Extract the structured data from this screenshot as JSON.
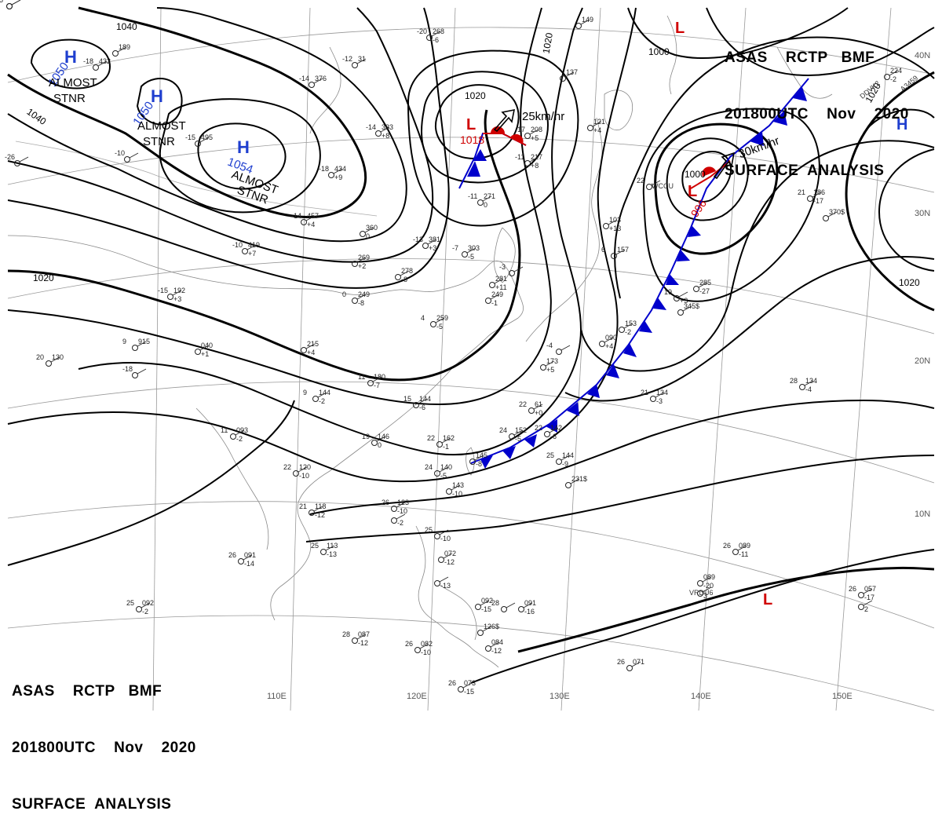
{
  "title": {
    "line1": "ASAS    RCTP   BMF",
    "line2": "201800UTC    Nov    2020",
    "line3": "SURFACE  ANALYSIS"
  },
  "lat_labels": [
    "40N",
    "30N",
    "20N",
    "10N"
  ],
  "lon_labels": [
    "110E",
    "120E",
    "130E",
    "140E",
    "150E"
  ],
  "isobar_labels": [
    "1040",
    "1040",
    "1020",
    "1020",
    "1000",
    "1020",
    "1020",
    "1000",
    "1020"
  ],
  "pressure_systems": [
    {
      "type": "H",
      "value": "1050",
      "note1": "ALMOST",
      "note2": "STNR"
    },
    {
      "type": "H",
      "value": "1050",
      "note1": "ALMOST",
      "note2": "STNR"
    },
    {
      "type": "H",
      "value": "1054",
      "note1": "ALMOST",
      "note2": "STNR"
    },
    {
      "type": "L",
      "value": "1018",
      "motion": "25km/hr"
    },
    {
      "type": "L",
      "value": "996",
      "motion": "30km/hr"
    },
    {
      "type": "L",
      "value": ""
    },
    {
      "type": "L",
      "value": ""
    },
    {
      "type": "H",
      "value": ""
    }
  ],
  "stations": [
    {
      "t": "-20",
      "p": "268",
      "w": "-6"
    },
    {
      "t": "-18",
      "p": "432",
      "w": ""
    },
    {
      "t": "-12",
      "p": "31",
      "w": ""
    },
    {
      "t": "-14",
      "p": "376",
      "w": ""
    },
    {
      "t": "-15",
      "p": "495",
      "w": ""
    },
    {
      "t": "-14",
      "p": "333",
      "w": "+8"
    },
    {
      "t": "-18",
      "p": "434",
      "w": "+9"
    },
    {
      "t": "-14",
      "p": "457",
      "w": "+4"
    },
    {
      "t": "-17",
      "p": "208",
      "w": "+5"
    },
    {
      "t": "-11",
      "p": "217",
      "w": "+8"
    },
    {
      "t": "-11",
      "p": "271",
      "w": "0"
    },
    {
      "t": "-13",
      "p": "381",
      "w": "+3"
    },
    {
      "t": "-7",
      "p": "303",
      "w": "-5"
    },
    {
      "t": "",
      "p": "360",
      "w": "0"
    },
    {
      "t": "-10",
      "p": "419",
      "w": "+7"
    },
    {
      "t": "",
      "p": "269",
      "w": "+2"
    },
    {
      "t": "",
      "p": "278",
      "w": "-8"
    },
    {
      "t": "",
      "p": "281",
      "w": "+11"
    },
    {
      "t": "",
      "p": "249",
      "w": "-1"
    },
    {
      "t": "0",
      "p": "249",
      "w": "-8"
    },
    {
      "t": "-15",
      "p": "192",
      "w": "+3"
    },
    {
      "t": "4",
      "p": "259",
      "w": "-5"
    },
    {
      "t": "9",
      "p": "915",
      "w": ""
    },
    {
      "t": "",
      "p": "040",
      "w": "+1"
    },
    {
      "t": "",
      "p": "215",
      "w": "+4"
    },
    {
      "t": "20",
      "p": "130",
      "w": ""
    },
    {
      "t": "9",
      "p": "144",
      "w": "-2"
    },
    {
      "t": "11",
      "p": "180",
      "w": "-7"
    },
    {
      "t": "15",
      "p": "144",
      "w": "-6"
    },
    {
      "t": "",
      "p": "173",
      "w": "+5"
    },
    {
      "t": "22",
      "p": "61",
      "w": "+0"
    },
    {
      "t": "11",
      "p": "093",
      "w": "-2"
    },
    {
      "t": "19",
      "p": "146",
      "w": "0"
    },
    {
      "t": "22",
      "p": "162",
      "w": "-1"
    },
    {
      "t": "24",
      "p": "152",
      "w": "-5"
    },
    {
      "t": "22",
      "p": "142",
      "w": "-6"
    },
    {
      "t": "",
      "p": "145",
      "w": "-8"
    },
    {
      "t": "25",
      "p": "144",
      "w": "-9"
    },
    {
      "t": "",
      "p": "231$",
      "w": ""
    },
    {
      "t": "22",
      "p": "120",
      "w": "-10"
    },
    {
      "t": "24",
      "p": "140",
      "w": "-5"
    },
    {
      "t": "",
      "p": "143",
      "w": "-10"
    },
    {
      "t": "21",
      "p": "118",
      "w": "-12"
    },
    {
      "t": "26",
      "p": "123",
      "w": "-10"
    },
    {
      "t": "",
      "p": "",
      "w": "-2"
    },
    {
      "t": "25",
      "p": "113",
      "w": "-13"
    },
    {
      "t": "26",
      "p": "091",
      "w": "-14"
    },
    {
      "t": "25",
      "p": "",
      "w": "-10"
    },
    {
      "t": "",
      "p": "072",
      "w": "-12"
    },
    {
      "t": "",
      "p": "",
      "w": "-13"
    },
    {
      "t": "",
      "p": "092",
      "w": "-15"
    },
    {
      "t": "28",
      "p": "",
      "w": ""
    },
    {
      "t": "",
      "p": "091",
      "w": "-16"
    },
    {
      "t": "",
      "p": "126$",
      "w": ""
    },
    {
      "t": "25",
      "p": "092",
      "w": "-2"
    },
    {
      "t": "28",
      "p": "087",
      "w": "-12"
    },
    {
      "t": "26",
      "p": "082",
      "w": "-10"
    },
    {
      "t": "",
      "p": "084",
      "w": "-12"
    },
    {
      "t": "26",
      "p": "073",
      "w": "-15"
    },
    {
      "t": "26",
      "p": "071",
      "w": ""
    },
    {
      "t": "26",
      "p": "089",
      "w": "-11"
    },
    {
      "t": "",
      "p": "089",
      "w": "-20"
    },
    {
      "t": "",
      "p": "",
      "w": "3"
    },
    {
      "t": "26",
      "p": "057",
      "w": "-17"
    },
    {
      "t": "",
      "p": "",
      "w": "2"
    },
    {
      "t": "21",
      "p": "134",
      "w": "-3"
    },
    {
      "t": "28",
      "p": "134",
      "w": "-4"
    },
    {
      "t": "",
      "p": "285",
      "w": "-27"
    },
    {
      "t": "",
      "p": "345$",
      "w": ""
    },
    {
      "t": "21",
      "p": "186",
      "w": "-17"
    },
    {
      "t": "",
      "p": "370$",
      "w": ""
    },
    {
      "t": "",
      "p": "224",
      "w": "-2"
    },
    {
      "t": "",
      "p": "149",
      "w": ""
    },
    {
      "t": "",
      "p": "153",
      "w": "-2"
    },
    {
      "t": "",
      "p": "090",
      "w": "+4"
    },
    {
      "t": "19",
      "p": "",
      "w": "+3"
    },
    {
      "t": "22",
      "p": "",
      "w": ""
    },
    {
      "t": "6",
      "p": "157",
      "w": ""
    },
    {
      "t": "",
      "p": "103",
      "w": "+13"
    },
    {
      "t": "",
      "p": "137",
      "w": ""
    },
    {
      "t": "",
      "p": "121",
      "w": "+4"
    },
    {
      "t": "",
      "p": "189",
      "w": ""
    },
    {
      "t": "-10",
      "p": "",
      "w": ""
    },
    {
      "t": "-18",
      "p": "",
      "w": ""
    },
    {
      "t": "-26",
      "p": "",
      "w": ""
    },
    {
      "t": "-3",
      "p": "",
      "w": ""
    },
    {
      "t": "-4",
      "p": "",
      "w": ""
    },
    {
      "t": "-5",
      "p": "",
      "w": ""
    },
    {
      "t": "",
      "p": "",
      "w": ""
    }
  ],
  "ship_ids": [
    "DDVK2",
    "A3459",
    "WCCU",
    "VRDU6"
  ]
}
